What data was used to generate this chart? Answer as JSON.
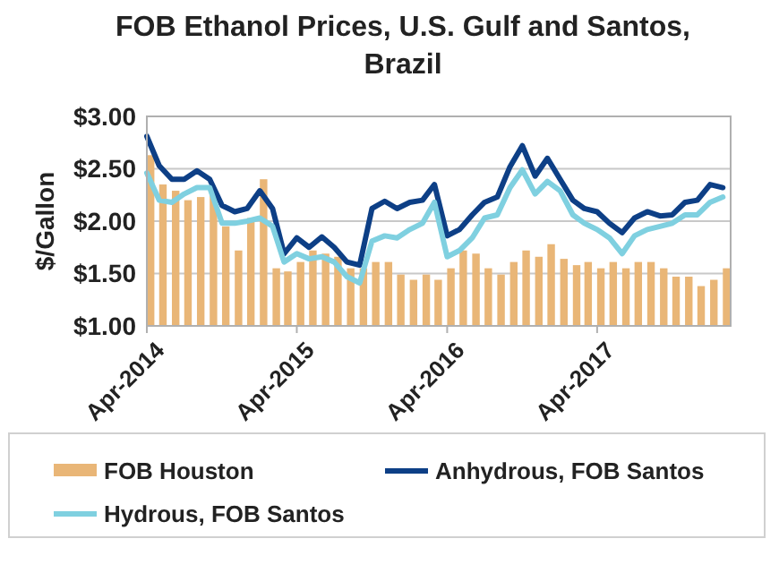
{
  "chart_data": {
    "type": "bar",
    "title": "FOB Ethanol Prices, U.S. Gulf and Santos, Brazil",
    "ylabel": "$/Gallon",
    "x": [
      "2014-04",
      "2014-05",
      "2014-06",
      "2014-07",
      "2014-08",
      "2014-09",
      "2014-10",
      "2014-11",
      "2014-12",
      "2015-01",
      "2015-02",
      "2015-03",
      "2015-04",
      "2015-05",
      "2015-06",
      "2015-07",
      "2015-08",
      "2015-09",
      "2015-10",
      "2015-11",
      "2015-12",
      "2016-01",
      "2016-02",
      "2016-03",
      "2016-04",
      "2016-05",
      "2016-06",
      "2016-07",
      "2016-08",
      "2016-09",
      "2016-10",
      "2016-11",
      "2016-12",
      "2017-01",
      "2017-02",
      "2017-03",
      "2017-04",
      "2017-05",
      "2017-06",
      "2017-07",
      "2017-08",
      "2017-09",
      "2017-10",
      "2017-11",
      "2017-12",
      "2018-01",
      "2018-02"
    ],
    "series": [
      {
        "name": "FOB Houston",
        "color": "#e9b677",
        "values": [
          2.63,
          2.35,
          2.29,
          2.2,
          2.23,
          2.29,
          1.95,
          1.72,
          2.03,
          2.4,
          1.55,
          1.52,
          1.61,
          1.72,
          1.69,
          1.66,
          1.55,
          1.55,
          1.61,
          1.61,
          1.49,
          1.44,
          1.49,
          1.44,
          1.55,
          1.72,
          1.69,
          1.55,
          1.49,
          1.61,
          1.72,
          1.66,
          1.78,
          1.64,
          1.58,
          1.61,
          1.55,
          1.61,
          1.55,
          1.61,
          1.61,
          1.55,
          1.47,
          1.47,
          1.38,
          1.44,
          1.55
        ]
      },
      {
        "name": "Anhydrous, FOB Santos",
        "type": "line",
        "color": "#0d3f86",
        "values": [
          2.81,
          2.53,
          2.4,
          2.4,
          2.48,
          2.4,
          2.15,
          2.09,
          2.12,
          2.29,
          2.12,
          1.69,
          1.84,
          1.75,
          1.85,
          1.75,
          1.61,
          1.58,
          2.12,
          2.19,
          2.12,
          2.18,
          2.2,
          2.35,
          1.86,
          1.92,
          2.06,
          2.18,
          2.23,
          2.52,
          2.72,
          2.43,
          2.6,
          2.4,
          2.2,
          2.12,
          2.09,
          1.98,
          1.89,
          2.03,
          2.09,
          2.05,
          2.06,
          2.18,
          2.2,
          2.35,
          2.32
        ]
      },
      {
        "name": "Hydrous, FOB Santos",
        "type": "line",
        "color": "#7fd0e0",
        "values": [
          2.46,
          2.2,
          2.18,
          2.26,
          2.32,
          2.32,
          1.98,
          1.98,
          2.0,
          2.03,
          1.95,
          1.61,
          1.69,
          1.64,
          1.66,
          1.61,
          1.47,
          1.41,
          1.81,
          1.86,
          1.84,
          1.92,
          1.98,
          2.18,
          1.66,
          1.72,
          1.84,
          2.03,
          2.06,
          2.32,
          2.49,
          2.26,
          2.38,
          2.29,
          2.06,
          1.98,
          1.92,
          1.84,
          1.69,
          1.86,
          1.92,
          1.95,
          1.98,
          2.06,
          2.06,
          2.18,
          2.23
        ]
      }
    ],
    "xlim": [
      "2014-04",
      "2018-02-20"
    ],
    "xticks": [
      {
        "value": "2014-04",
        "label": "Apr-2014"
      },
      {
        "value": "2015-04",
        "label": "Apr-2015"
      },
      {
        "value": "2016-04",
        "label": "Apr-2016"
      },
      {
        "value": "2017-04",
        "label": "Apr-2017"
      }
    ],
    "ylim": [
      1,
      3
    ],
    "yticks": [
      {
        "value": 1,
        "label": "$1.00"
      },
      {
        "value": 1.5,
        "label": "$1.50"
      },
      {
        "value": 2,
        "label": "$2.00"
      },
      {
        "value": 2.5,
        "label": "$2.50"
      },
      {
        "value": 3,
        "label": "$3.00"
      }
    ],
    "grid": "y",
    "legend": "bottom",
    "line_style": "solid",
    "marker": "none"
  }
}
